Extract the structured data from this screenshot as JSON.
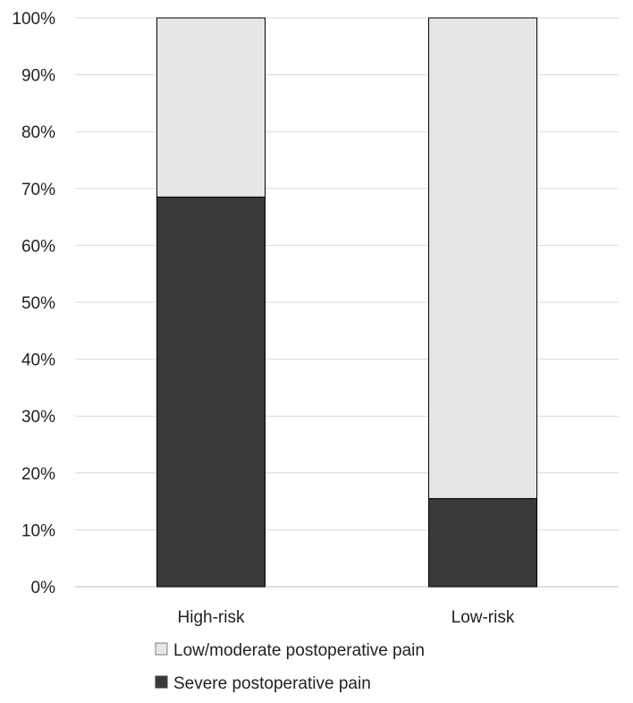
{
  "chart_data": {
    "type": "bar",
    "stacked": true,
    "categories": [
      "High-risk",
      "Low-risk"
    ],
    "series": [
      {
        "name": "Severe postoperative pain",
        "values": [
          68.5,
          15.5
        ],
        "color": "#3a3a3a"
      },
      {
        "name": "Low/moderate postoperative pain",
        "values": [
          31.5,
          84.5
        ],
        "color": "#e6e6e6"
      }
    ],
    "ylim": [
      0,
      100
    ],
    "yticks": [
      0,
      10,
      20,
      30,
      40,
      50,
      60,
      70,
      80,
      90,
      100
    ],
    "ytick_suffix": "%",
    "grid": true,
    "legend_position": "bottom",
    "legend_order": [
      "Low/moderate postoperative pain",
      "Severe postoperative pain"
    ],
    "colors": {
      "grid": "#d9d9d9",
      "bar_outline": "#000000",
      "axis": "#bfbfbf"
    }
  }
}
